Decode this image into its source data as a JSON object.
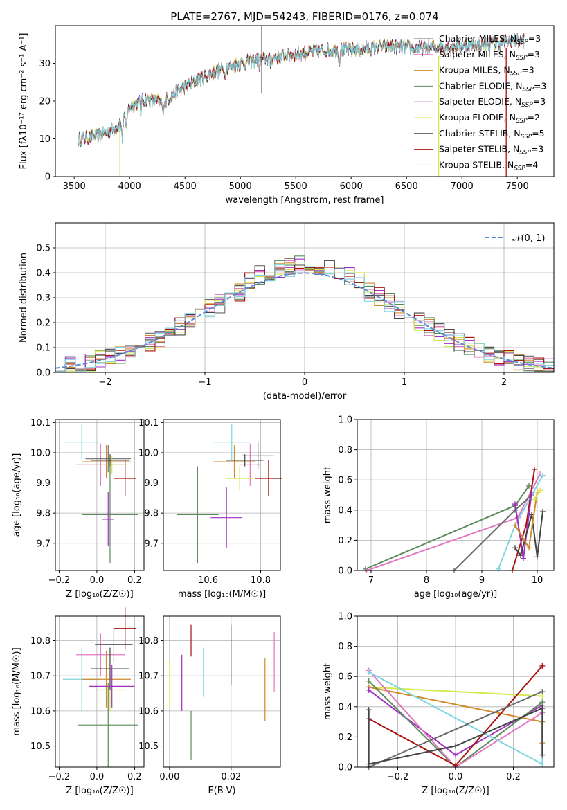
{
  "figure_title": "PLATE=2767, MJD=54243, FIBERID=0176, z=0.074",
  "colors": {
    "Chabrier MILES": "#6a6a6a",
    "Salpeter MILES": "#e377c2",
    "Kroupa MILES": "#d08a2a",
    "Chabrier ELODIE": "#5b8a5b",
    "Salpeter ELODIE": "#a12fbf",
    "Kroupa ELODIE": "#d3e84a",
    "Chabrier STELIB": "#444444",
    "Salpeter STELIB": "#aa1111",
    "Kroupa STELIB": "#7fd6e0",
    "normal_curve": "#5b8bd6"
  },
  "chart_data": [
    {
      "id": "spectrum",
      "type": "line",
      "xlabel": "wavelength [Angstrom, rest frame]",
      "ylabel": "Flux [fλ10⁻¹⁷ erg cm⁻² s⁻¹ A⁻¹]",
      "xlim": [
        3330,
        7830
      ],
      "ylim": [
        0,
        40
      ],
      "xticks": [
        3500,
        4000,
        4500,
        5000,
        5500,
        6000,
        6500,
        7000,
        7500
      ],
      "yticks": [
        0,
        10,
        20,
        30
      ],
      "legend_position": "top-right",
      "legend": [
        {
          "label": "Chabrier MILES, N",
          "sub": "SSP",
          "tail": "=3"
        },
        {
          "label": "Salpeter MILES, N",
          "sub": "SSP",
          "tail": "=3"
        },
        {
          "label": "Kroupa MILES, N",
          "sub": "SSP",
          "tail": "=3"
        },
        {
          "label": "Chabrier ELODIE, N",
          "sub": "SSP",
          "tail": "=3"
        },
        {
          "label": "Salpeter ELODIE, N",
          "sub": "SSP",
          "tail": "=3"
        },
        {
          "label": "Kroupa ELODIE, N",
          "sub": "SSP",
          "tail": "=2"
        },
        {
          "label": "Chabrier STELIB, N",
          "sub": "SSP",
          "tail": "=5"
        },
        {
          "label": "Salpeter STELIB, N",
          "sub": "SSP",
          "tail": "=3"
        },
        {
          "label": "Kroupa STELIB, N",
          "sub": "SSP",
          "tail": "=4"
        }
      ],
      "continuum": [
        [
          3540,
          10
        ],
        [
          3700,
          10.5
        ],
        [
          3850,
          12.5
        ],
        [
          3950,
          15
        ],
        [
          4000,
          18.5
        ],
        [
          4150,
          20.5
        ],
        [
          4300,
          19.5
        ],
        [
          4400,
          22
        ],
        [
          4600,
          25.5
        ],
        [
          4800,
          28
        ],
        [
          5000,
          30
        ],
        [
          5200,
          31
        ],
        [
          5500,
          32.5
        ],
        [
          5800,
          33.5
        ],
        [
          6000,
          33.5
        ],
        [
          6300,
          34.5
        ],
        [
          6600,
          34
        ],
        [
          6900,
          34.5
        ],
        [
          7200,
          35
        ],
        [
          7500,
          36
        ]
      ]
    },
    {
      "id": "residuals",
      "type": "step",
      "xlabel": "(data-model)/error",
      "ylabel": "Normed distribution",
      "xlim": [
        -2.5,
        2.5
      ],
      "ylim": [
        0,
        0.6
      ],
      "xticks": [
        -2,
        -1,
        0,
        1,
        2
      ],
      "yticks": [
        0.0,
        0.1,
        0.2,
        0.3,
        0.4,
        0.5
      ],
      "legend": "𝒩(0, 1)",
      "legend_position": "top-right",
      "bin_width": 0.1
    },
    {
      "id": "age_vs_Z",
      "type": "errorbar",
      "xlabel": "Z [log₁₀(Z/Z☉)]",
      "ylabel": "age  [log₁₀(age/yr)]",
      "xlim": [
        -0.22,
        0.25
      ],
      "ylim": [
        9.61,
        10.11
      ],
      "xticks": [
        -0.2,
        0.0,
        0.2
      ],
      "yticks": [
        9.7,
        9.8,
        9.9,
        10.0,
        10.1
      ],
      "points": [
        {
          "model": "Kroupa STELIB",
          "x": -0.08,
          "xerr": 0.1,
          "y": 10.035,
          "yerr": 0.06
        },
        {
          "model": "Salpeter MILES",
          "x": 0.02,
          "xerr": 0.13,
          "y": 9.96,
          "yerr": 0.07
        },
        {
          "model": "Kroupa MILES",
          "x": 0.05,
          "xerr": 0.13,
          "y": 9.97,
          "yerr": 0.055
        },
        {
          "model": "Chabrier MILES",
          "x": 0.06,
          "xerr": 0.12,
          "y": 9.98,
          "yerr": 0.045
        },
        {
          "model": "Kroupa ELODIE",
          "x": 0.08,
          "xerr": 0.08,
          "y": 9.96,
          "yerr": 0.03
        },
        {
          "model": "Chabrier STELIB",
          "x": 0.07,
          "xerr": 0.1,
          "y": 9.975,
          "yerr": 0.02
        },
        {
          "model": "Salpeter STELIB",
          "x": 0.15,
          "xerr": 0.06,
          "y": 9.915,
          "yerr": 0.06
        },
        {
          "model": "Chabrier ELODIE",
          "x": 0.07,
          "xerr": 0.15,
          "y": 9.795,
          "yerr": 0.16
        },
        {
          "model": "Salpeter ELODIE",
          "x": 0.06,
          "xerr": 0.03,
          "y": 9.78,
          "yerr": 0.09
        }
      ]
    },
    {
      "id": "age_vs_mass",
      "type": "errorbar",
      "xlabel": "mass [log₁₀(M/M☉)]",
      "ylabel": "",
      "xlim": [
        10.43,
        10.875
      ],
      "ylim": [
        9.61,
        10.11
      ],
      "xticks": [
        10.6,
        10.8
      ],
      "yticks": [
        9.7,
        9.8,
        9.9,
        10.0,
        10.1
      ],
      "points": [
        {
          "model": "Kroupa STELIB",
          "x": 10.69,
          "xerr": 0.07,
          "y": 10.035,
          "yerr": 0.06
        },
        {
          "model": "Salpeter MILES",
          "x": 10.76,
          "xerr": 0.04,
          "y": 9.96,
          "yerr": 0.07
        },
        {
          "model": "Kroupa MILES",
          "x": 10.7,
          "xerr": 0.08,
          "y": 9.97,
          "yerr": 0.055
        },
        {
          "model": "Chabrier MILES",
          "x": 10.79,
          "xerr": 0.06,
          "y": 9.99,
          "yerr": 0.045
        },
        {
          "model": "Kroupa ELODIE",
          "x": 10.72,
          "xerr": 0.05,
          "y": 9.915,
          "yerr": 0.04
        },
        {
          "model": "Chabrier STELIB",
          "x": 10.74,
          "xerr": 0.07,
          "y": 9.975,
          "yerr": 0.02
        },
        {
          "model": "Salpeter STELIB",
          "x": 10.83,
          "xerr": 0.05,
          "y": 9.915,
          "yerr": 0.06
        },
        {
          "model": "Chabrier ELODIE",
          "x": 10.56,
          "xerr": 0.08,
          "y": 9.795,
          "yerr": 0.16
        },
        {
          "model": "Salpeter ELODIE",
          "x": 10.67,
          "xerr": 0.06,
          "y": 9.785,
          "yerr": 0.1
        }
      ]
    },
    {
      "id": "weight_vs_age",
      "type": "line",
      "xlabel": "age  [log₁₀(age/yr)]",
      "ylabel": "mass weight",
      "xlim": [
        6.75,
        10.3
      ],
      "ylim": [
        0,
        1
      ],
      "xticks": [
        7,
        8,
        9,
        10
      ],
      "yticks": [
        0.0,
        0.2,
        0.4,
        0.6,
        0.8,
        1.0
      ],
      "series": [
        {
          "model": "Chabrier ELODIE",
          "x": [
            6.9,
            9.6,
            9.85
          ],
          "y": [
            0.01,
            0.43,
            0.56
          ]
        },
        {
          "model": "Salpeter MILES",
          "x": [
            6.92,
            9.65,
            10.05
          ],
          "y": [
            0.0,
            0.35,
            0.64
          ]
        },
        {
          "model": "Chabrier MILES",
          "x": [
            8.5,
            9.6,
            9.9
          ],
          "y": [
            0.0,
            0.4,
            0.5
          ]
        },
        {
          "model": "Kroupa STELIB",
          "x": [
            9.3,
            9.6,
            10.1
          ],
          "y": [
            0.01,
            0.3,
            0.63
          ]
        },
        {
          "model": "Salpeter STELIB",
          "x": [
            9.55,
            9.8,
            9.95
          ],
          "y": [
            0.0,
            0.3,
            0.67
          ]
        },
        {
          "model": "Salpeter ELODIE",
          "x": [
            9.6,
            9.75,
            9.9
          ],
          "y": [
            0.44,
            0.08,
            0.52
          ]
        },
        {
          "model": "Chabrier STELIB",
          "x": [
            9.6,
            9.7,
            9.9,
            10.0,
            10.1
          ],
          "y": [
            0.15,
            0.1,
            0.37,
            0.09,
            0.39
          ]
        },
        {
          "model": "Kroupa MILES",
          "x": [
            9.6,
            9.85,
            10.0
          ],
          "y": [
            0.3,
            0.15,
            0.52
          ]
        },
        {
          "model": "Kroupa ELODIE",
          "x": [
            9.95,
            10.05
          ],
          "y": [
            0.47,
            0.53
          ]
        }
      ]
    },
    {
      "id": "mass_vs_Z",
      "type": "errorbar",
      "xlabel": "Z [log₁₀(Z/Z☉)]",
      "ylabel": "mass [log₁₀(M/M☉)]",
      "xlim": [
        -0.22,
        0.25
      ],
      "ylim": [
        10.44,
        10.87
      ],
      "xticks": [
        -0.2,
        0.0,
        0.2
      ],
      "yticks": [
        10.5,
        10.6,
        10.7,
        10.8
      ],
      "points": [
        {
          "model": "Kroupa STELIB",
          "x": -0.08,
          "xerr": 0.1,
          "y": 10.69,
          "yerr": 0.09
        },
        {
          "model": "Salpeter MILES",
          "x": 0.02,
          "xerr": 0.13,
          "y": 10.76,
          "yerr": 0.06
        },
        {
          "model": "Chabrier MILES",
          "x": 0.09,
          "xerr": 0.1,
          "y": 10.79,
          "yerr": 0.05
        },
        {
          "model": "Kroupa MILES",
          "x": 0.05,
          "xerr": 0.13,
          "y": 10.69,
          "yerr": 0.08
        },
        {
          "model": "Kroupa ELODIE",
          "x": 0.07,
          "xerr": 0.08,
          "y": 10.66,
          "yerr": 0.06
        },
        {
          "model": "Chabrier STELIB",
          "x": 0.07,
          "xerr": 0.1,
          "y": 10.72,
          "yerr": 0.06
        },
        {
          "model": "Salpeter STELIB",
          "x": 0.15,
          "xerr": 0.06,
          "y": 10.835,
          "yerr": 0.06
        },
        {
          "model": "Salpeter ELODIE",
          "x": 0.08,
          "xerr": 0.12,
          "y": 10.67,
          "yerr": 0.06
        },
        {
          "model": "Chabrier ELODIE",
          "x": 0.06,
          "xerr": 0.16,
          "y": 10.56,
          "yerr": 0.12
        }
      ]
    },
    {
      "id": "mass_vs_ebv",
      "type": "errorbar",
      "xlabel": "E(B-V)",
      "ylabel": "",
      "xlim": [
        -0.002,
        0.036
      ],
      "ylim": [
        10.44,
        10.87
      ],
      "xticks": [
        0.0,
        0.02
      ],
      "yticks": [
        10.5,
        10.6,
        10.7,
        10.8
      ],
      "points": [
        {
          "model": "Kroupa ELODIE",
          "x": 0.0,
          "y": 10.68,
          "yerr": 0.07
        },
        {
          "model": "Salpeter ELODIE",
          "x": 0.004,
          "y": 10.68,
          "yerr": 0.08
        },
        {
          "model": "Chabrier ELODIE",
          "x": 0.007,
          "y": 10.53,
          "yerr": 0.07
        },
        {
          "model": "Salpeter STELIB",
          "x": 0.007,
          "y": 10.8,
          "yerr": 0.045
        },
        {
          "model": "Kroupa STELIB",
          "x": 0.011,
          "y": 10.71,
          "yerr": 0.07
        },
        {
          "model": "Chabrier MILES",
          "x": 0.02,
          "y": 10.76,
          "yerr": 0.085
        },
        {
          "model": "Kroupa MILES",
          "x": 0.031,
          "y": 10.66,
          "yerr": 0.09
        },
        {
          "model": "Salpeter MILES",
          "x": 0.034,
          "y": 10.74,
          "yerr": 0.085
        }
      ]
    },
    {
      "id": "weight_vs_Z",
      "type": "line",
      "xlabel": "Z [log₁₀(Z/Z☉)]",
      "ylabel": "mass weight",
      "xlim": [
        -0.34,
        0.34
      ],
      "ylim": [
        0,
        1
      ],
      "xticks": [
        -0.2,
        0.0,
        0.2
      ],
      "yticks": [
        0.0,
        0.2,
        0.4,
        0.6,
        0.8,
        1.0
      ],
      "series": [
        {
          "model": "Kroupa ELODIE",
          "x": [
            -0.3,
            0.3
          ],
          "y": [
            0.53,
            0.47
          ]
        },
        {
          "model": "Kroupa MILES",
          "x": [
            -0.3,
            0.3,
            0.3
          ],
          "y": [
            0.53,
            0.3,
            0.16
          ]
        },
        {
          "model": "Salpeter ELODIE",
          "x": [
            -0.3,
            0.0,
            0.3
          ],
          "y": [
            0.51,
            0.08,
            0.41
          ]
        },
        {
          "model": "Chabrier ELODIE",
          "x": [
            -0.3,
            0.0,
            0.3
          ],
          "y": [
            0.57,
            0.0,
            0.43
          ]
        },
        {
          "model": "Salpeter MILES",
          "x": [
            -0.3,
            0.0,
            0.3
          ],
          "y": [
            0.64,
            0.0,
            0.36
          ]
        },
        {
          "model": "Kroupa STELIB",
          "x": [
            -0.3,
            0.3,
            0.3
          ],
          "y": [
            0.63,
            0.02,
            0.35
          ]
        },
        {
          "model": "Salpeter STELIB",
          "x": [
            -0.3,
            0.0,
            0.3
          ],
          "y": [
            0.32,
            0.01,
            0.67
          ]
        },
        {
          "model": "Chabrier MILES",
          "x": [
            -0.3,
            0.3
          ],
          "y": [
            0.0,
            0.5
          ]
        },
        {
          "model": "Chabrier STELIB",
          "x": [
            -0.3,
            -0.3,
            0.0,
            0.3,
            0.3
          ],
          "y": [
            0.38,
            0.02,
            0.14,
            0.39,
            0.08
          ]
        }
      ]
    }
  ]
}
